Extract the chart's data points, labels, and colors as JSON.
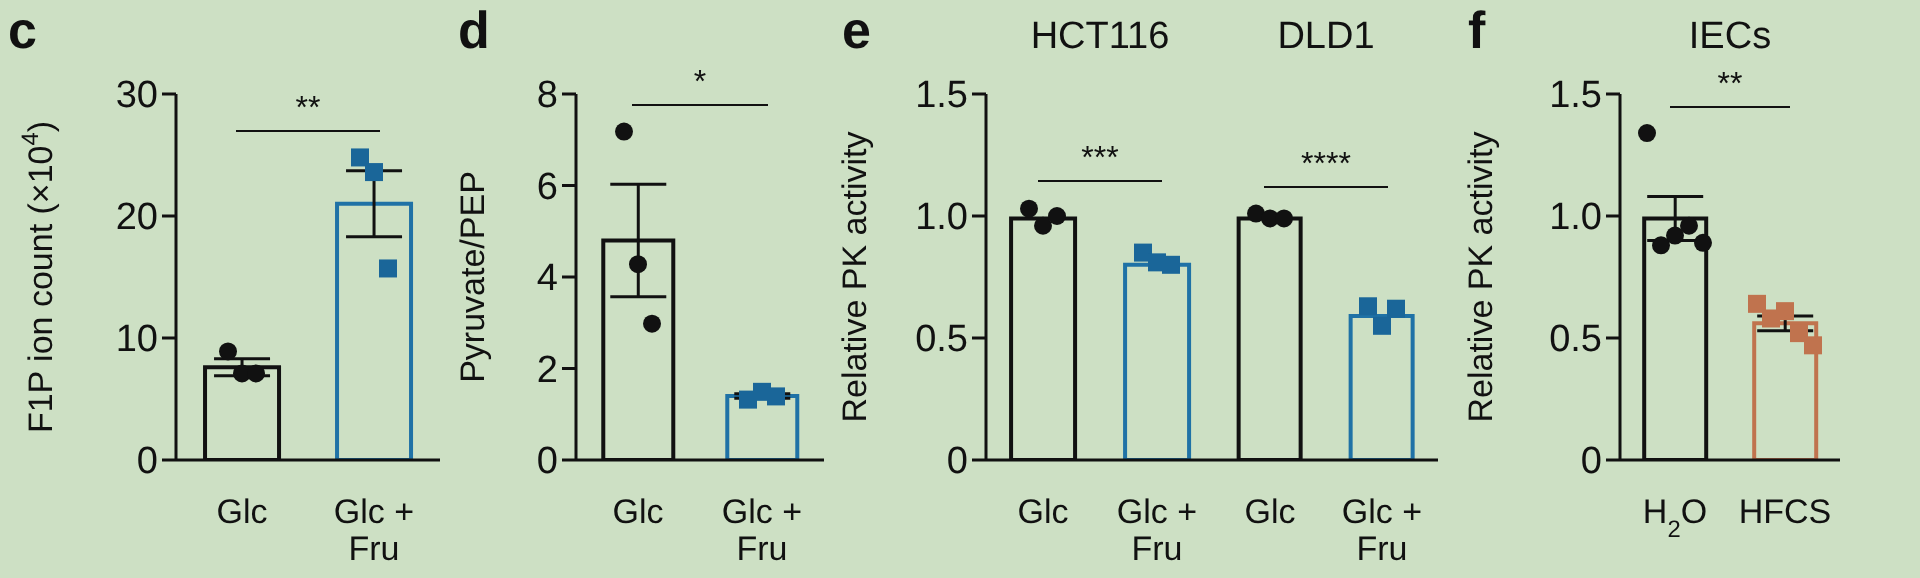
{
  "chart_data": [
    {
      "type": "bar",
      "title": "c",
      "ylabel": "F1P ion count (×10$^{4}$)",
      "categories": [
        "Glc",
        "Glc + Fru"
      ],
      "ylim": [
        0,
        30
      ],
      "yticks": [
        0,
        10,
        20,
        30
      ],
      "annotations": [
        "**"
      ],
      "series": [
        {
          "type": "bar",
          "values": [
            7.6,
            21.0
          ],
          "errors": [
            0.7,
            2.7
          ],
          "colors": [
            "#111111",
            "#1f72a6"
          ]
        },
        {
          "type": "scatter",
          "x": [
            "Glc",
            "Glc",
            "Glc"
          ],
          "values": [
            8.9,
            7.1,
            7.1
          ],
          "color": "#111111",
          "marker": "circle"
        },
        {
          "type": "scatter",
          "x": [
            "Glc + Fru",
            "Glc + Fru",
            "Glc + Fru"
          ],
          "values": [
            24.8,
            23.6,
            15.7
          ],
          "color": "#1a6699",
          "marker": "square"
        }
      ]
    },
    {
      "type": "bar",
      "title": "d",
      "ylabel": "Pyruvate/PEP",
      "categories": [
        "Glc",
        "Glc + Fru"
      ],
      "ylim": [
        0,
        8
      ],
      "yticks": [
        0,
        2,
        4,
        6,
        8
      ],
      "annotations": [
        "*"
      ],
      "series": [
        {
          "type": "bar",
          "values": [
            4.8,
            1.4
          ],
          "errors": [
            1.23,
            0.05
          ],
          "colors": [
            "#111111",
            "#1f72a6"
          ]
        },
        {
          "type": "scatter",
          "x": [
            "Glc",
            "Glc",
            "Glc"
          ],
          "values": [
            7.18,
            4.28,
            2.98
          ],
          "color": "#111111",
          "marker": "circle"
        },
        {
          "type": "scatter",
          "x": [
            "Glc + Fru",
            "Glc + Fru",
            "Glc + Fru"
          ],
          "values": [
            1.32,
            1.49,
            1.39
          ],
          "color": "#1a6699",
          "marker": "square"
        }
      ]
    },
    {
      "type": "bar",
      "title": "e",
      "subtitle": "HCT116",
      "ylabel": "Relative PK activity",
      "categories": [
        "Glc",
        "Glc + Fru"
      ],
      "ylim": [
        0,
        1.5
      ],
      "yticks": [
        0,
        0.5,
        {
          "value": 1,
          "label": "1.0"
        },
        1.5
      ],
      "annotations": [
        "***"
      ],
      "series": [
        {
          "type": "bar",
          "values": [
            0.99,
            0.8
          ],
          "colors": [
            "#111111",
            "#1f72a6"
          ]
        },
        {
          "type": "scatter",
          "x": [
            "Glc",
            "Glc",
            "Glc"
          ],
          "values": [
            1.03,
            0.96,
            1.0
          ],
          "color": "#111111",
          "marker": "circle"
        },
        {
          "type": "scatter",
          "x": [
            "Glc + Fru",
            "Glc + Fru",
            "Glc + Fru"
          ],
          "values": [
            0.85,
            0.81,
            0.8
          ],
          "color": "#1a6699",
          "marker": "square"
        }
      ]
    },
    {
      "type": "bar",
      "subtitle": "DLD1",
      "categories": [
        "Glc",
        "Glc + Fru"
      ],
      "ylim": [
        0,
        1.5
      ],
      "tick_labels": "x",
      "annotations": [
        "****"
      ],
      "series": [
        {
          "type": "bar",
          "values": [
            0.99,
            0.59
          ],
          "colors": [
            "#111111",
            "#1f72a6"
          ]
        },
        {
          "type": "scatter",
          "x": [
            "Glc",
            "Glc",
            "Glc"
          ],
          "values": [
            1.01,
            0.99,
            0.99
          ],
          "color": "#111111",
          "marker": "circle"
        },
        {
          "type": "scatter",
          "x": [
            "Glc + Fru",
            "Glc + Fru",
            "Glc + Fru"
          ],
          "values": [
            0.63,
            0.55,
            0.62
          ],
          "color": "#1a6699",
          "marker": "square"
        }
      ]
    },
    {
      "type": "bar",
      "title": "f",
      "subtitle": "IECs",
      "ylabel": "Relative PK activity",
      "categories": [
        "H$_{2}$O",
        "HFCS"
      ],
      "ylim": [
        0,
        1.5
      ],
      "yticks": [
        0,
        0.5,
        {
          "value": 1,
          "label": "1.0"
        },
        1.5
      ],
      "annotations": [
        "**"
      ],
      "series": [
        {
          "type": "bar",
          "values": [
            0.99,
            0.56
          ],
          "errors": [
            0.09,
            0.03
          ],
          "colors": [
            "#111111",
            "#c0734e"
          ]
        },
        {
          "type": "scatter",
          "x": [
            "H$_{2}$O",
            "H$_{2}$O",
            "H$_{2}$O",
            "H$_{2}$O",
            "H$_{2}$O"
          ],
          "values": [
            1.34,
            0.88,
            0.92,
            0.96,
            0.89
          ],
          "color": "#111111",
          "marker": "circle"
        },
        {
          "type": "scatter",
          "x": [
            "HFCS",
            "HFCS",
            "HFCS",
            "HFCS",
            "HFCS"
          ],
          "values": [
            0.64,
            0.58,
            0.61,
            0.52,
            0.47
          ],
          "color": "#c0734e",
          "marker": "square"
        }
      ]
    }
  ]
}
